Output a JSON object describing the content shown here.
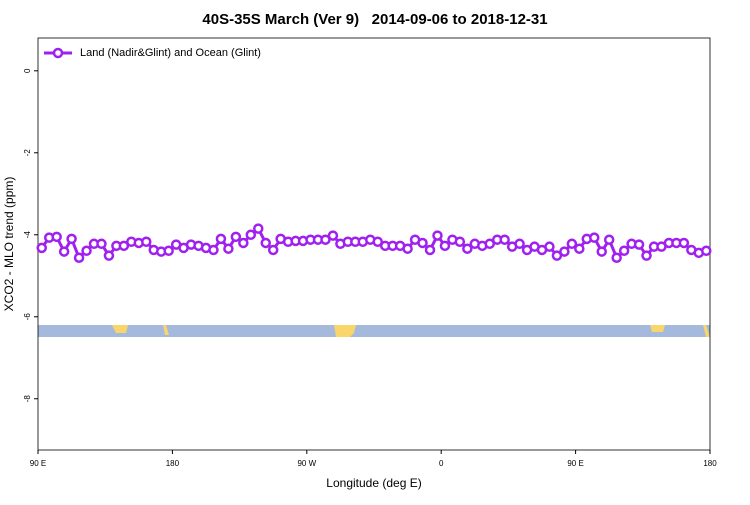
{
  "chart_data": {
    "type": "line",
    "title": "40S-35S March (Ver 9)   2014-09-06 to 2018-12-31",
    "x_label": "Longitude (deg E)",
    "y_label": "XCO2 - MLO trend (ppm)",
    "xlim": [
      90,
      540
    ],
    "ylim": [
      -9.25,
      0.8
    ],
    "xticks": [
      {
        "value": 90,
        "label": "90 E"
      },
      180,
      {
        "value": 270,
        "label": "90 W"
      },
      {
        "value": 360,
        "label": "0"
      },
      {
        "value": 450,
        "label": "90 E"
      },
      {
        "value": 540,
        "label": "180"
      }
    ],
    "yticks": [
      0,
      -2,
      -4,
      -6,
      -8
    ],
    "legend": "upper left",
    "x": [
      92.5,
      97.5,
      102.5,
      107.5,
      112.5,
      117.5,
      122.5,
      127.5,
      132.5,
      137.5,
      142.5,
      147.5,
      152.5,
      157.5,
      162.5,
      167.5,
      172.5,
      177.5,
      182.5,
      187.5,
      192.5,
      197.5,
      202.5,
      207.5,
      212.5,
      217.5,
      222.5,
      227.5,
      232.5,
      237.5,
      242.5,
      247.5,
      252.5,
      257.5,
      262.5,
      267.5,
      272.5,
      277.5,
      282.5,
      287.5,
      292.5,
      297.5,
      302.5,
      307.5,
      312.5,
      317.5,
      322.5,
      327.5,
      332.5,
      337.5,
      342.5,
      347.5,
      352.5,
      357.5,
      362.5,
      367.5,
      372.5,
      377.5,
      382.5,
      387.5,
      392.5,
      397.5,
      402.5,
      407.5,
      412.5,
      417.5,
      422.5,
      427.5,
      432.5,
      437.5,
      442.5,
      447.5,
      452.5,
      457.5,
      462.5,
      467.5,
      472.5,
      477.5,
      482.5,
      487.5,
      492.5,
      497.5,
      502.5,
      507.5,
      512.5,
      517.5,
      522.5,
      527.5,
      532.5,
      537.5
    ],
    "series": [
      {
        "name": "Land (Nadir&Glint) and Ocean (Glint)",
        "color": "#a020f0",
        "values": [
          -4.32,
          -4.07,
          -4.05,
          -4.41,
          -4.1,
          -4.56,
          -4.39,
          -4.22,
          -4.22,
          -4.51,
          -4.27,
          -4.27,
          -4.17,
          -4.2,
          -4.17,
          -4.37,
          -4.41,
          -4.39,
          -4.24,
          -4.32,
          -4.24,
          -4.27,
          -4.32,
          -4.37,
          -4.1,
          -4.34,
          -4.05,
          -4.2,
          -4.0,
          -3.85,
          -4.2,
          -4.37,
          -4.1,
          -4.17,
          -4.15,
          -4.15,
          -4.12,
          -4.12,
          -4.12,
          -4.02,
          -4.22,
          -4.17,
          -4.17,
          -4.17,
          -4.12,
          -4.17,
          -4.27,
          -4.27,
          -4.27,
          -4.34,
          -4.12,
          -4.2,
          -4.37,
          -4.02,
          -4.27,
          -4.12,
          -4.17,
          -4.34,
          -4.22,
          -4.27,
          -4.22,
          -4.12,
          -4.12,
          -4.29,
          -4.22,
          -4.37,
          -4.29,
          -4.37,
          -4.29,
          -4.51,
          -4.41,
          -4.22,
          -4.34,
          -4.1,
          -4.07,
          -4.41,
          -4.12,
          -4.56,
          -4.39,
          -4.22,
          -4.24,
          -4.51,
          -4.29,
          -4.29,
          -4.2,
          -4.2,
          -4.2,
          -4.37,
          -4.44,
          -4.39
        ]
      }
    ]
  }
}
